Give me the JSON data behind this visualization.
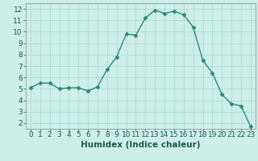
{
  "x": [
    0,
    1,
    2,
    3,
    4,
    5,
    6,
    7,
    8,
    9,
    10,
    11,
    12,
    13,
    14,
    15,
    16,
    17,
    18,
    19,
    20,
    21,
    22,
    23
  ],
  "y": [
    5.1,
    5.5,
    5.5,
    5.0,
    5.1,
    5.1,
    4.8,
    5.2,
    6.7,
    7.8,
    9.8,
    9.7,
    11.2,
    11.9,
    11.6,
    11.8,
    11.5,
    10.4,
    7.5,
    6.4,
    4.5,
    3.7,
    3.5,
    1.7
  ],
  "line_color": "#2a8a7a",
  "marker": "D",
  "marker_size": 2.5,
  "bg_color": "#ceeee8",
  "grid_color": "#aad8d0",
  "xlabel": "Humidex (Indice chaleur)",
  "ylim": [
    1.5,
    12.5
  ],
  "xlim": [
    -0.5,
    23.5
  ],
  "yticks": [
    2,
    3,
    4,
    5,
    6,
    7,
    8,
    9,
    10,
    11,
    12
  ],
  "xticks": [
    0,
    1,
    2,
    3,
    4,
    5,
    6,
    7,
    8,
    9,
    10,
    11,
    12,
    13,
    14,
    15,
    16,
    17,
    18,
    19,
    20,
    21,
    22,
    23
  ],
  "xlabel_fontsize": 7.5,
  "tick_fontsize": 6.5,
  "tick_color": "#1a5a52",
  "line_width": 1.0
}
